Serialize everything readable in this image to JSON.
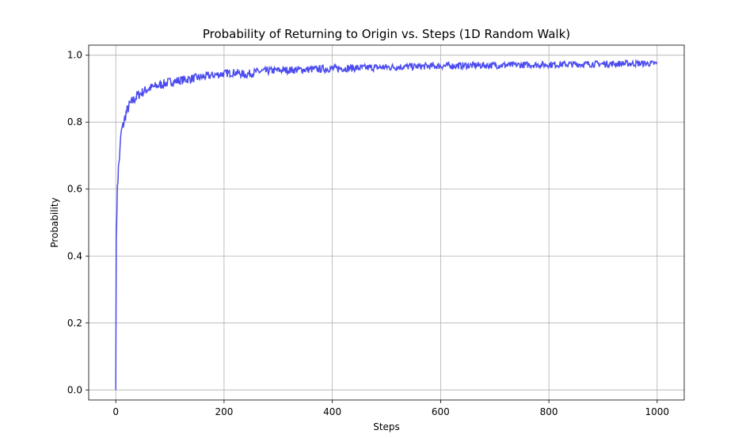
{
  "chart_data": {
    "type": "line",
    "title": "Probability of Returning to Origin vs. Steps (1D Random Walk)",
    "xlabel": "Steps",
    "ylabel": "Probability",
    "xlim": [
      -50,
      1050
    ],
    "ylim": [
      -0.03,
      1.03
    ],
    "xticks": [
      0,
      200,
      400,
      600,
      800,
      1000
    ],
    "yticks": [
      0.0,
      0.2,
      0.4,
      0.6,
      0.8,
      1.0
    ],
    "grid": true,
    "line_color": "#4b4bf0",
    "series": [
      {
        "x": [
          0,
          1,
          2,
          3,
          4,
          5,
          6,
          8,
          10,
          12,
          15,
          18,
          20,
          25,
          30,
          35,
          40,
          50,
          60,
          70,
          80,
          90,
          100,
          120,
          140,
          160,
          180,
          200,
          220,
          240,
          260,
          280,
          300,
          350,
          400,
          450,
          500,
          550,
          600,
          650,
          700,
          750,
          800,
          850,
          900,
          950,
          1000
        ],
        "values": [
          0.0,
          0.48,
          0.5,
          0.62,
          0.63,
          0.66,
          0.68,
          0.72,
          0.77,
          0.78,
          0.8,
          0.82,
          0.83,
          0.85,
          0.86,
          0.87,
          0.88,
          0.89,
          0.9,
          0.905,
          0.91,
          0.915,
          0.92,
          0.925,
          0.93,
          0.935,
          0.94,
          0.945,
          0.948,
          0.942,
          0.95,
          0.953,
          0.955,
          0.957,
          0.96,
          0.962,
          0.964,
          0.966,
          0.968,
          0.969,
          0.97,
          0.971,
          0.972,
          0.973,
          0.974,
          0.975,
          0.975
        ]
      }
    ]
  }
}
